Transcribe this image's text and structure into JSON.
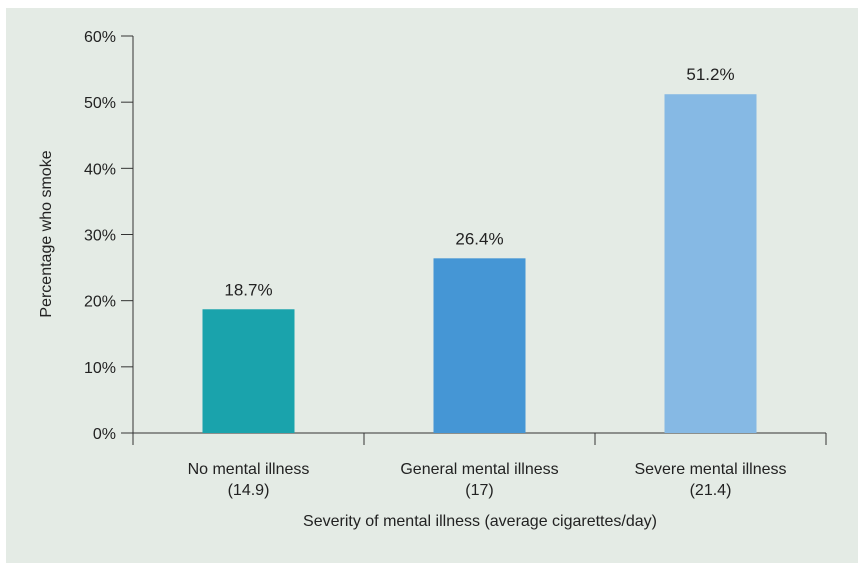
{
  "chart_data": {
    "type": "bar",
    "title": "",
    "xlabel": "Severity of mental illness (average cigarettes/day)",
    "ylabel": "Percentage who smoke",
    "ylim": [
      0,
      60
    ],
    "yticks": [
      "0%",
      "10%",
      "20%",
      "30%",
      "40%",
      "50%",
      "60%"
    ],
    "ytick_values": [
      0,
      10,
      20,
      30,
      40,
      50,
      60
    ],
    "categories": [
      {
        "line1": "No mental illness",
        "line2": "(14.9)"
      },
      {
        "line1": "General mental illness",
        "line2": "(17)"
      },
      {
        "line1": "Severe mental illness",
        "line2": "(21.4)"
      }
    ],
    "values": [
      18.7,
      26.4,
      51.2
    ],
    "value_labels": [
      "18.7%",
      "26.4%",
      "51.2%"
    ],
    "colors": [
      "#1aa3ac",
      "#4596d5",
      "#86b9e4"
    ],
    "grid": false,
    "legend": "none"
  }
}
